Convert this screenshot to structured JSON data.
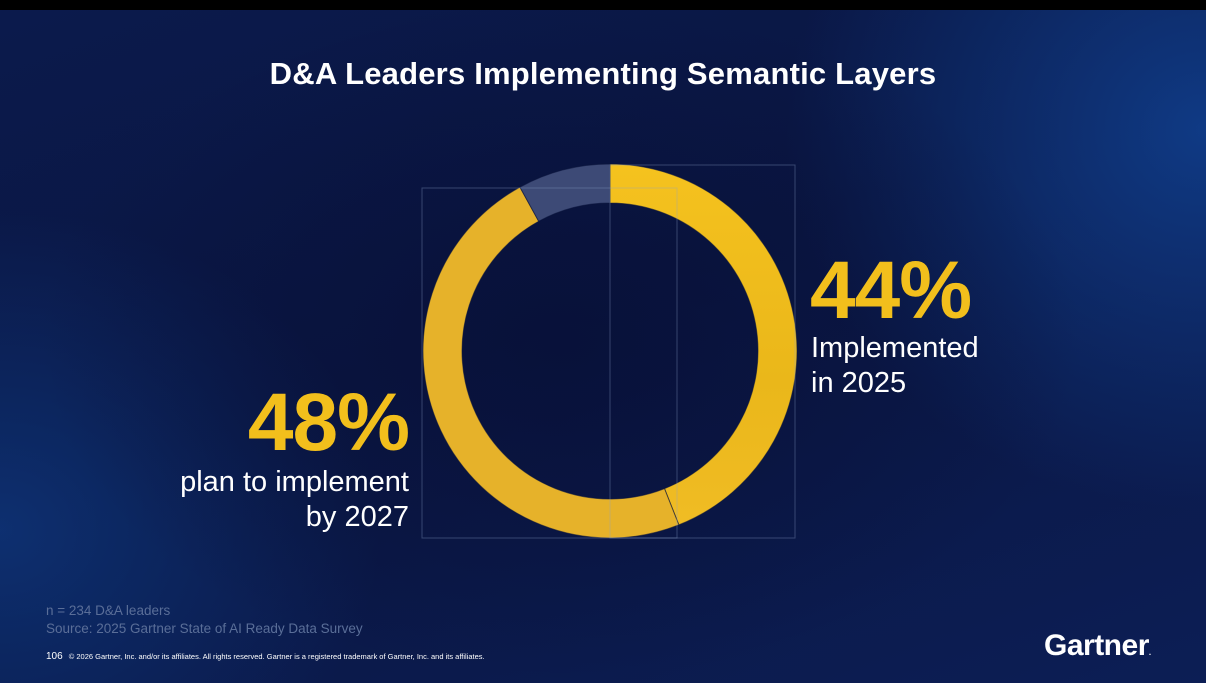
{
  "title": "D&A Leaders Implementing Semantic Layers",
  "chart_data": {
    "type": "pie",
    "variant": "donut",
    "title": "D&A Leaders Implementing Semantic Layers",
    "slices": [
      {
        "name": "Implemented in 2025",
        "value": 44,
        "color": "#f2bf1c"
      },
      {
        "name": "plan to implement by 2027",
        "value": 48,
        "color": "#e6b22a"
      },
      {
        "name": "",
        "value": 8,
        "color": "#3d4a76"
      }
    ],
    "labels": [
      {
        "value_text": "44%",
        "caption_lines": [
          "Implemented",
          "in 2025"
        ]
      },
      {
        "value_text": "48%",
        "caption_lines": [
          "plan to implement",
          "by 2027"
        ]
      }
    ]
  },
  "footnote": {
    "sample": "n = 234 D&A leaders",
    "source": "Source: 2025 Gartner State of AI Ready Data Survey"
  },
  "footer": {
    "page_number": "106",
    "copyright": "© 2026 Gartner, Inc. and/or its affiliates. All rights reserved. Gartner is a registered trademark of Gartner, Inc. and its affiliates."
  },
  "logo": {
    "text": "Gartner",
    "mark": "."
  },
  "colors": {
    "accent": "#f2bf1c",
    "background": "#0a1642",
    "text": "#ffffff"
  }
}
